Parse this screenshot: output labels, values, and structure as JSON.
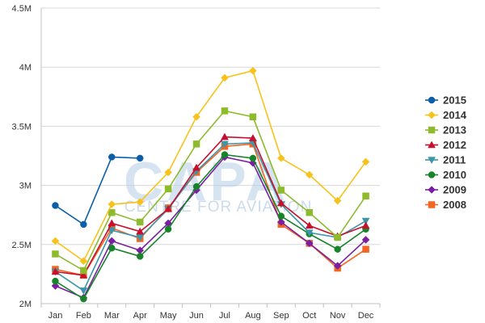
{
  "chart_data": {
    "type": "line",
    "watermark": {
      "brand": "CAPA",
      "tagline": "CENTRE FOR AVIATION"
    },
    "categories": [
      "Jan",
      "Feb",
      "Mar",
      "Apr",
      "May",
      "Jun",
      "Jul",
      "Aug",
      "Sep",
      "Oct",
      "Nov",
      "Dec"
    ],
    "y_ticks": [
      {
        "value": 2000000,
        "label": "2M"
      },
      {
        "value": 2500000,
        "label": "2.5M"
      },
      {
        "value": 3000000,
        "label": "3M"
      },
      {
        "value": 3500000,
        "label": "3.5M"
      },
      {
        "value": 4000000,
        "label": "4M"
      },
      {
        "value": 4500000,
        "label": "4.5M"
      }
    ],
    "ylim": [
      2000000,
      4500000
    ],
    "grid": "horizontal",
    "legend": "right",
    "series": [
      {
        "name": "2015",
        "color": "#0b5ea8",
        "marker": "circle",
        "values": [
          2830000,
          2670000,
          3240000,
          3230000,
          null,
          null,
          null,
          null,
          null,
          null,
          null,
          null
        ]
      },
      {
        "name": "2014",
        "color": "#f7c21b",
        "marker": "diamond",
        "values": [
          2530000,
          2360000,
          2840000,
          2860000,
          3110000,
          3580000,
          3910000,
          3970000,
          3230000,
          3090000,
          2870000,
          3200000
        ]
      },
      {
        "name": "2013",
        "color": "#8dbb2c",
        "marker": "square",
        "values": [
          2420000,
          2280000,
          2770000,
          2690000,
          2970000,
          3350000,
          3630000,
          3580000,
          2960000,
          2770000,
          2560000,
          2910000
        ]
      },
      {
        "name": "2012",
        "color": "#c8102e",
        "marker": "triangle",
        "values": [
          2270000,
          2240000,
          2680000,
          2610000,
          2800000,
          3150000,
          3410000,
          3400000,
          2850000,
          2660000,
          2570000,
          2660000
        ]
      },
      {
        "name": "2011",
        "color": "#3a96a8",
        "marker": "triangle-down",
        "values": [
          2270000,
          2110000,
          2620000,
          2560000,
          2800000,
          3120000,
          3350000,
          3360000,
          2840000,
          2600000,
          2560000,
          2700000
        ]
      },
      {
        "name": "2010",
        "color": "#17842a",
        "marker": "circle",
        "values": [
          2190000,
          2040000,
          2470000,
          2400000,
          2630000,
          2990000,
          3260000,
          3230000,
          2740000,
          2590000,
          2460000,
          2630000
        ]
      },
      {
        "name": "2009",
        "color": "#7b1fa2",
        "marker": "diamond",
        "values": [
          2150000,
          2050000,
          2530000,
          2450000,
          2680000,
          2960000,
          3240000,
          3190000,
          2690000,
          2510000,
          2320000,
          2540000
        ]
      },
      {
        "name": "2008",
        "color": "#f26522",
        "marker": "square",
        "values": [
          2290000,
          2240000,
          2640000,
          2550000,
          2810000,
          3110000,
          3330000,
          3350000,
          2670000,
          2510000,
          2300000,
          2460000
        ]
      }
    ]
  }
}
